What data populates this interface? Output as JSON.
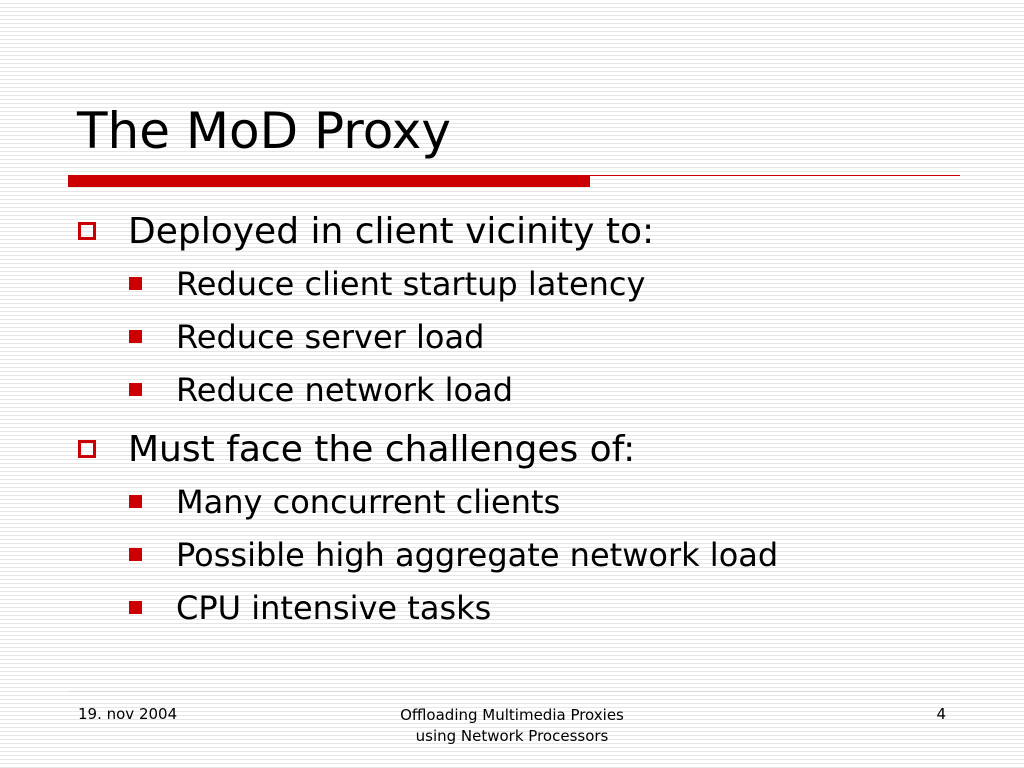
{
  "slide": {
    "title": "The MoD Proxy",
    "bullets": [
      {
        "text": "Deployed in client vicinity to:",
        "sub": [
          "Reduce client startup latency",
          "Reduce server load",
          "Reduce network load"
        ]
      },
      {
        "text": "Must face the challenges of:",
        "sub": [
          "Many concurrent clients",
          "Possible high aggregate network load",
          "CPU intensive tasks"
        ]
      }
    ]
  },
  "footer": {
    "date": "19. nov 2004",
    "center_line1": "Offloading Multimedia Proxies",
    "center_line2": "using Network Processors",
    "page_number": "4"
  },
  "colors": {
    "accent": "#cc0000",
    "background_line": "#e6e6e6"
  },
  "icons": {
    "level1_bullet": "hollow-square-icon",
    "level2_bullet": "filled-square-icon"
  }
}
